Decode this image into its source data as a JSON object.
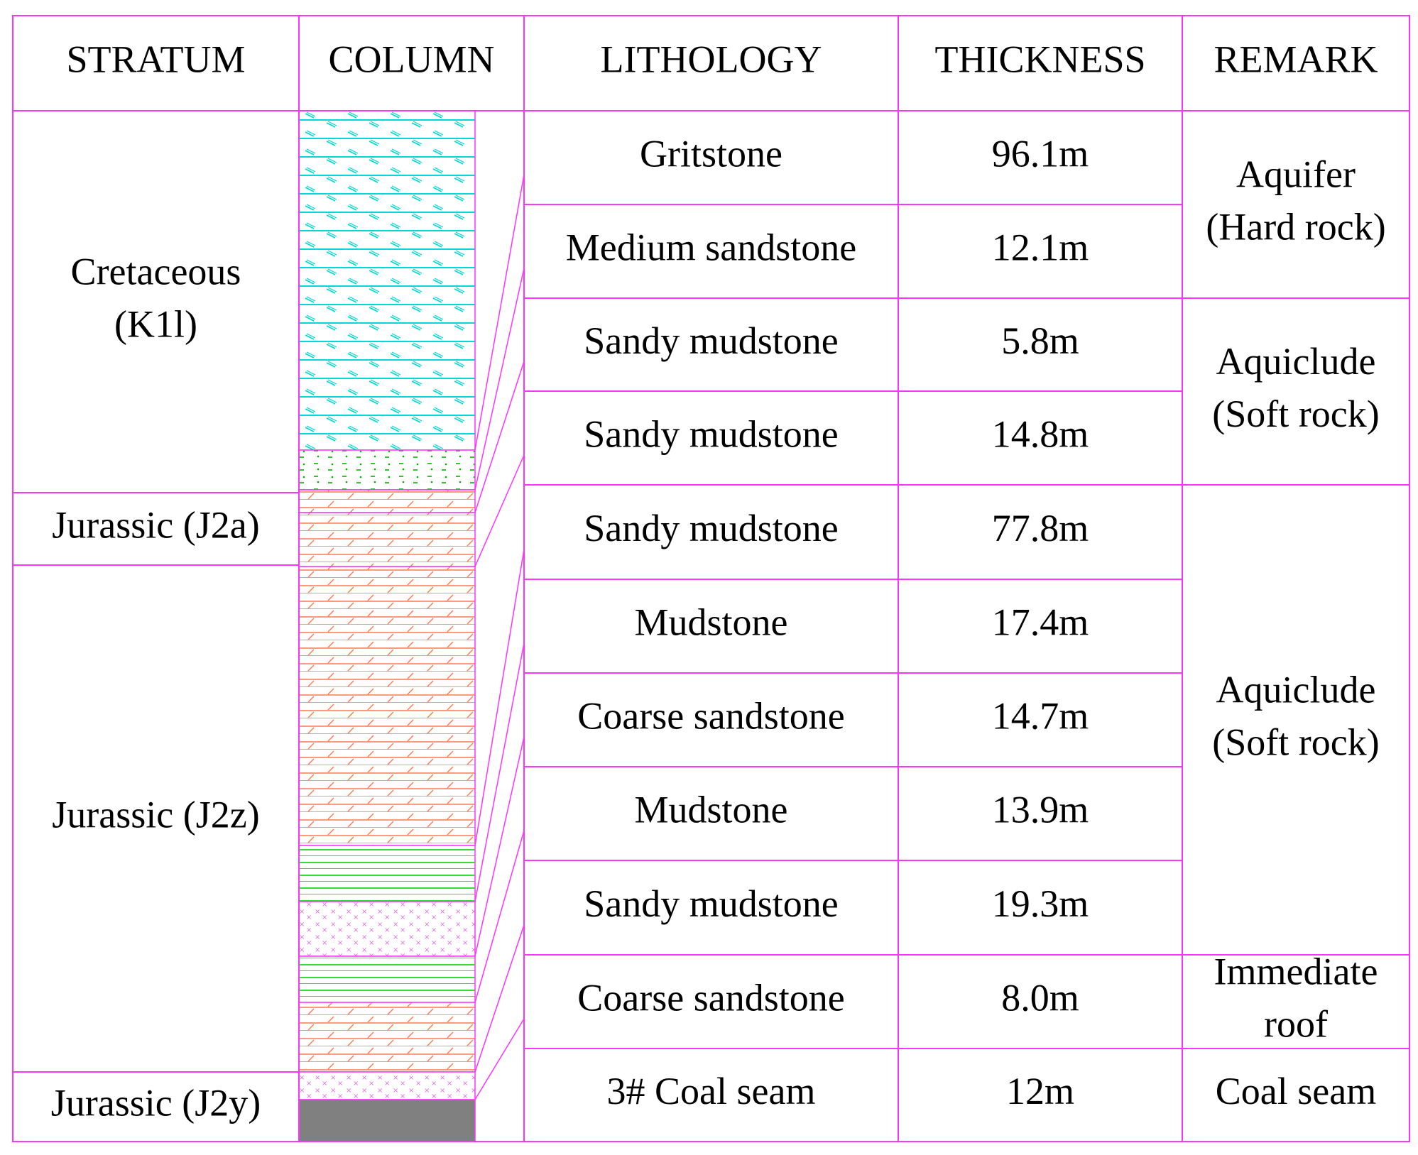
{
  "colors": {
    "grid": "#ff33ff",
    "gritstone_line": "#00d7d7",
    "gritstone_fill": "#35f5f5",
    "medium_sandstone_line": "#00b400",
    "sandy_mudstone_line": "#ff7a4d",
    "mudstone_line": "#33dd33",
    "coarse_sandstone_line": "#e070e0",
    "coal": "#808080"
  },
  "headers": {
    "stratum": "STRATUM",
    "column": "COLUMN",
    "lithology": "LITHOLOGY",
    "thickness": "THICKNESS",
    "remark": "REMARK"
  },
  "strata": [
    {
      "lines": [
        "Cretaceous",
        "(K1l)"
      ]
    },
    {
      "lines": [
        "Jurassic (J2a)"
      ]
    },
    {
      "lines": [
        "Jurassic (J2z)"
      ]
    },
    {
      "lines": [
        "Jurassic (J2y)"
      ]
    }
  ],
  "layers": [
    {
      "lithology": "Gritstone",
      "thickness": "96.1m",
      "pattern": "gritstone"
    },
    {
      "lithology": "Medium sandstone",
      "thickness": "12.1m",
      "pattern": "medium-sandstone"
    },
    {
      "lithology": "Sandy mudstone",
      "thickness": "5.8m",
      "pattern": "sandy-mudstone"
    },
    {
      "lithology": "Sandy mudstone",
      "thickness": "14.8m",
      "pattern": "sandy-mudstone"
    },
    {
      "lithology": "Sandy mudstone",
      "thickness": "77.8m",
      "pattern": "sandy-mudstone"
    },
    {
      "lithology": "Mudstone",
      "thickness": "17.4m",
      "pattern": "mudstone"
    },
    {
      "lithology": "Coarse sandstone",
      "thickness": "14.7m",
      "pattern": "coarse-sandstone"
    },
    {
      "lithology": "Mudstone",
      "thickness": "13.9m",
      "pattern": "mudstone"
    },
    {
      "lithology": "Sandy mudstone",
      "thickness": "19.3m",
      "pattern": "sandy-mudstone"
    },
    {
      "lithology": "Coarse sandstone",
      "thickness": "8.0m",
      "pattern": "coarse-sandstone"
    },
    {
      "lithology": "3# Coal seam",
      "thickness": "12m",
      "pattern": "coal"
    }
  ],
  "remarks": [
    {
      "lines": [
        "Aquifer",
        "(Hard rock)"
      ]
    },
    {
      "lines": [
        "Aquiclude",
        "(Soft rock)"
      ]
    },
    {
      "lines": [
        "Aquiclude",
        "(Soft rock)"
      ]
    },
    {
      "lines": [
        "Immediate",
        "roof"
      ]
    },
    {
      "lines": [
        "Coal seam"
      ]
    }
  ]
}
